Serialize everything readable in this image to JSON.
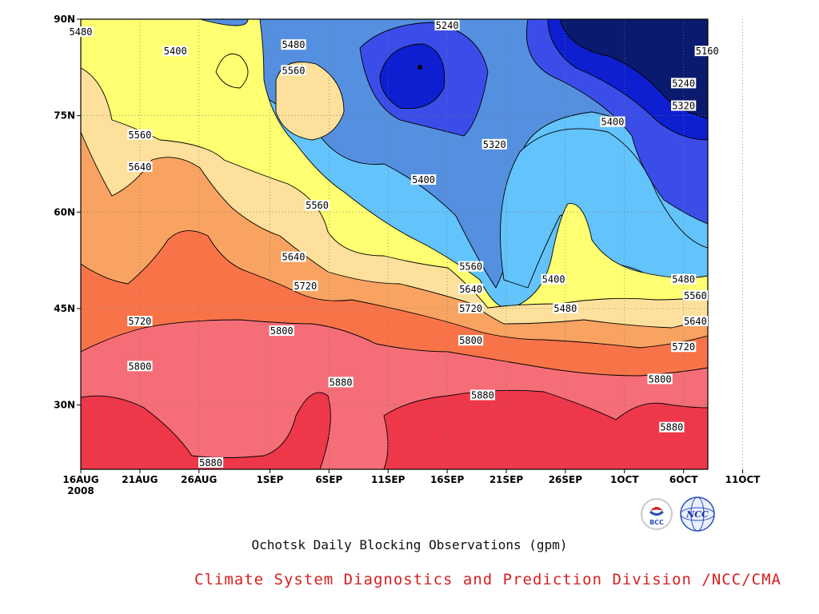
{
  "title": "Ochotsk Daily Blocking Observations (gpm)",
  "credit": "Climate System Diagnostics and Prediction Division /NCC/CMA",
  "credit_color": "#d42020",
  "logos": [
    {
      "name": "bcc-logo",
      "text": "BCC"
    },
    {
      "name": "ncc-logo",
      "text": "NCC"
    }
  ],
  "chart_data": {
    "type": "contour",
    "title": "Ochotsk Daily Blocking Observations (gpm)",
    "xlabel": "",
    "ylabel": "",
    "x_ticks": [
      "16AUG",
      "21AUG",
      "26AUG",
      "1SEP",
      "6SEP",
      "11SEP",
      "16SEP",
      "21SEP",
      "26SEP",
      "1OCT",
      "6OCT",
      "11OCT"
    ],
    "x_year": "2008",
    "y_ticks": [
      "30N",
      "45N",
      "60N",
      "75N",
      "90N"
    ],
    "y_values": [
      30,
      45,
      60,
      75,
      90
    ],
    "ylim": [
      20,
      90
    ],
    "contour_levels": [
      5160,
      5240,
      5320,
      5400,
      5480,
      5560,
      5640,
      5720,
      5800,
      5880
    ],
    "band_colors": {
      "lt5160": "#0a1a6e",
      "5160_5240": "#0d1fd1",
      "5240_5320": "#3b4de8",
      "5320_5400": "#5590e0",
      "5400_5480": "#63c3fb",
      "5480_5560": "#ffff72",
      "5560_5640": "#fde09b",
      "5640_5720": "#f8a361",
      "5720_5800": "#f87448",
      "5800_5880": "#f56d77",
      "gt5880": "#ef374a"
    },
    "contour_labels": [
      {
        "v": "5480",
        "d": "16AUG",
        "lat": 88
      },
      {
        "v": "5400",
        "d": "24AUG",
        "lat": 85
      },
      {
        "v": "5480",
        "d": "3SEP",
        "lat": 86
      },
      {
        "v": "5560",
        "d": "3SEP",
        "lat": 82
      },
      {
        "v": "5240",
        "d": "16SEP",
        "lat": 89
      },
      {
        "v": "5160",
        "d": "8OCT",
        "lat": 85
      },
      {
        "v": "5240",
        "d": "6OCT",
        "lat": 80
      },
      {
        "v": "5320",
        "d": "6OCT",
        "lat": 76.5
      },
      {
        "v": "5400",
        "d": "30SEP",
        "lat": 74
      },
      {
        "v": "5320",
        "d": "20SEP",
        "lat": 70.5
      },
      {
        "v": "5560",
        "d": "21AUG",
        "lat": 72
      },
      {
        "v": "5640",
        "d": "21AUG",
        "lat": 67
      },
      {
        "v": "5400",
        "d": "14SEP",
        "lat": 65
      },
      {
        "v": "5560",
        "d": "5SEP",
        "lat": 61
      },
      {
        "v": "5640",
        "d": "3SEP",
        "lat": 53
      },
      {
        "v": "5720",
        "d": "4SEP",
        "lat": 48.5
      },
      {
        "v": "5560",
        "d": "18SEP",
        "lat": 51.5
      },
      {
        "v": "5400",
        "d": "25SEP",
        "lat": 49.5
      },
      {
        "v": "5640",
        "d": "18SEP",
        "lat": 48
      },
      {
        "v": "5480",
        "d": "26SEP",
        "lat": 45
      },
      {
        "v": "5720",
        "d": "18SEP",
        "lat": 45
      },
      {
        "v": "5480",
        "d": "6OCT",
        "lat": 49.5
      },
      {
        "v": "5560",
        "d": "7OCT",
        "lat": 47
      },
      {
        "v": "5640",
        "d": "7OCT",
        "lat": 43
      },
      {
        "v": "5720",
        "d": "21AUG",
        "lat": 43
      },
      {
        "v": "5800",
        "d": "2SEP",
        "lat": 41.5
      },
      {
        "v": "5800",
        "d": "18SEP",
        "lat": 40
      },
      {
        "v": "5720",
        "d": "6OCT",
        "lat": 39
      },
      {
        "v": "5800",
        "d": "21AUG",
        "lat": 36
      },
      {
        "v": "5880",
        "d": "7SEP",
        "lat": 33.5
      },
      {
        "v": "5880",
        "d": "19SEP",
        "lat": 31.5
      },
      {
        "v": "5800",
        "d": "4OCT",
        "lat": 34
      },
      {
        "v": "5880",
        "d": "5OCT",
        "lat": 26.5
      },
      {
        "v": "5880",
        "d": "27AUG",
        "lat": 21
      }
    ]
  }
}
